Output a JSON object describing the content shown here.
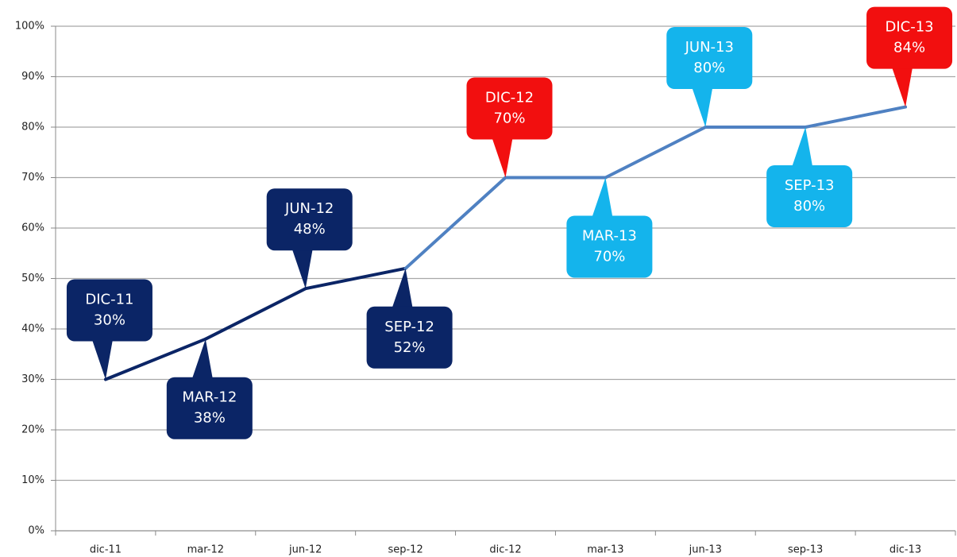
{
  "chart_data": {
    "type": "line",
    "categories": [
      "dic-11",
      "mar-12",
      "jun-12",
      "sep-12",
      "dic-12",
      "mar-13",
      "jun-13",
      "sep-13",
      "dic-13"
    ],
    "values": [
      30,
      38,
      48,
      52,
      70,
      70,
      80,
      80,
      84
    ],
    "value_labels": [
      "30%",
      "38%",
      "48%",
      "52%",
      "70%",
      "70%",
      "80%",
      "80%",
      "84%"
    ],
    "callout_titles": [
      "DIC-11",
      "MAR-12",
      "JUN-12",
      "SEP-12",
      "DIC-12",
      "MAR-13",
      "JUN-13",
      "SEP-13",
      "DIC-13"
    ],
    "callout_colors": [
      "#0b2566",
      "#0b2566",
      "#0b2566",
      "#0b2566",
      "#f20f0f",
      "#14b4ec",
      "#14b4ec",
      "#14b4ec",
      "#f20f0f"
    ],
    "line_colors": [
      "#0b2566",
      "#0b2566",
      "#0b2566",
      "#4f81c2",
      "#4f81c2",
      "#4f81c2",
      "#4f81c2",
      "#4f81c2"
    ],
    "ylim": [
      0,
      100
    ],
    "yticks": [
      {
        "value": 0,
        "label": "0%"
      },
      {
        "value": 10,
        "label": "10%"
      },
      {
        "value": 20,
        "label": "20%"
      },
      {
        "value": 30,
        "label": "30%"
      },
      {
        "value": 40,
        "label": "40%"
      },
      {
        "value": 50,
        "label": "50%"
      },
      {
        "value": 60,
        "label": "60%"
      },
      {
        "value": 70,
        "label": "70%"
      },
      {
        "value": 80,
        "label": "80%"
      },
      {
        "value": 90,
        "label": "90%"
      },
      {
        "value": 100,
        "label": "100%"
      }
    ],
    "grid": true
  }
}
